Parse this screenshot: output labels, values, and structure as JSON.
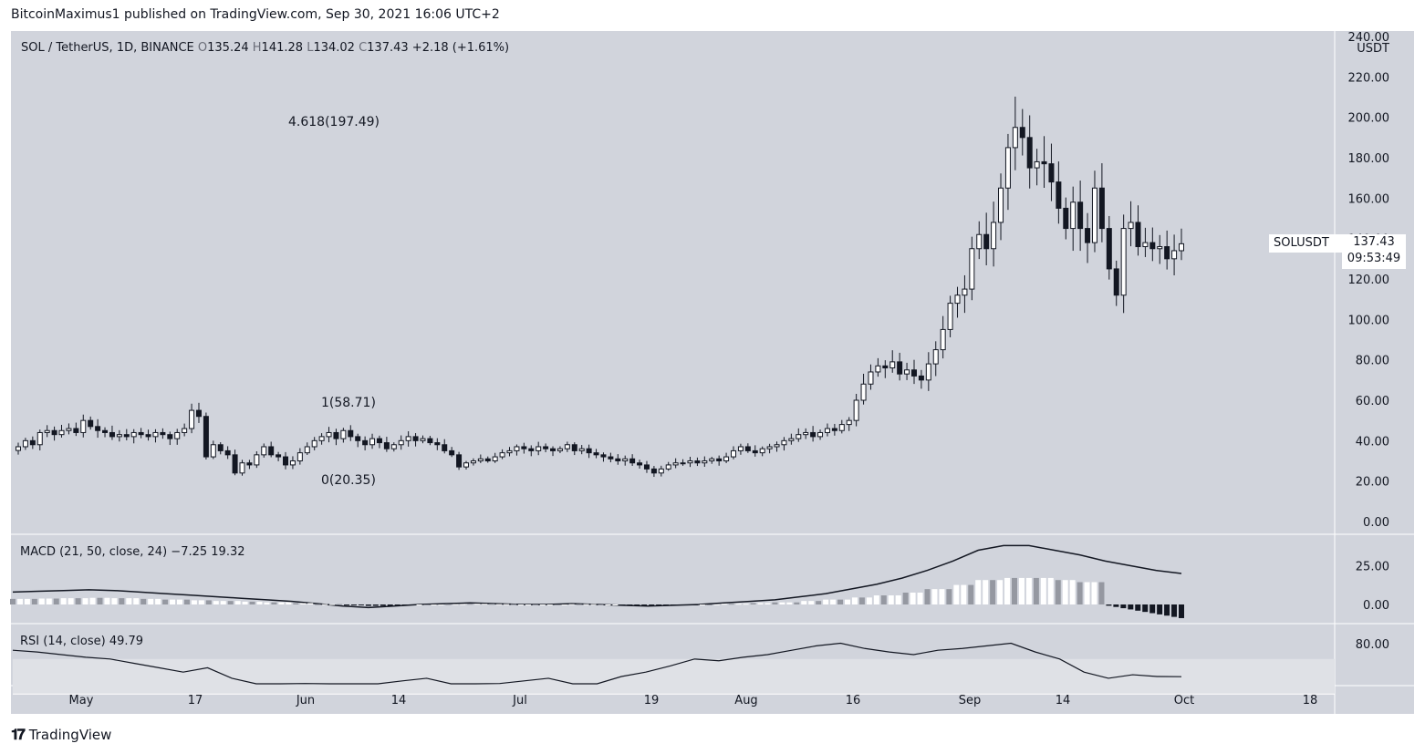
{
  "header": {
    "publisher_line": "BitcoinMaximus1 published on TradingView.com, Sep 30, 2021 16:06 UTC+2"
  },
  "legend": {
    "symbol": "SOL / TetherUS, 1D, BINANCE",
    "o_label": "O",
    "o": "135.24",
    "h_label": "H",
    "h": "141.28",
    "l_label": "L",
    "l": "134.02",
    "c_label": "C",
    "c": "137.43",
    "change": "+2.18 (+1.61%)"
  },
  "macd_legend": {
    "label": "MACD (21, 50, close, 24)",
    "v1": "−7.25",
    "v2": "19.32"
  },
  "rsi_legend": {
    "label": "RSI (14, close)",
    "v": "49.79"
  },
  "fib": {
    "top": "4.618(197.49)",
    "mid": "1(58.71)",
    "low": "0(20.35)"
  },
  "price_tag": {
    "symbol": "SOLUSDT",
    "price": "137.43",
    "countdown": "09:53:49"
  },
  "axis_unit": "USDT",
  "footer": {
    "brand": "TradingView"
  },
  "colors": {
    "bg": "#d1d4dc",
    "up": "#ffffff",
    "down": "#131722",
    "hist_light": "#9598a1"
  },
  "chart_data": [
    {
      "type": "candlestick",
      "title": "SOL / TetherUS, 1D, BINANCE",
      "ylabel": "USDT",
      "ylim": [
        0,
        240
      ],
      "y_ticks": [
        "240.00",
        "220.00",
        "200.00",
        "180.00",
        "160.00",
        "140.00",
        "120.00",
        "100.00",
        "80.00",
        "60.00",
        "40.00",
        "20.00",
        "0.00"
      ],
      "x_ticks": [
        "May",
        "17",
        "Jun",
        "14",
        "Jul",
        "19",
        "Aug",
        "16",
        "Sep",
        "14",
        "Oct",
        "18"
      ],
      "close_series": [
        37,
        40,
        38,
        44,
        45,
        43,
        45,
        46,
        44,
        50,
        47,
        45,
        44,
        42,
        43,
        42,
        44,
        43,
        42,
        44,
        43,
        41,
        44,
        46,
        55,
        52,
        32,
        38,
        35,
        33,
        24,
        29,
        28,
        33,
        37,
        33,
        32,
        28,
        30,
        34,
        37,
        40,
        42,
        44,
        41,
        45,
        42,
        40,
        38,
        41,
        39,
        36,
        38,
        40,
        42,
        40,
        41,
        39,
        38,
        35,
        33,
        27,
        29,
        30,
        31,
        30,
        32,
        34,
        35,
        37,
        36,
        35,
        37,
        36,
        35,
        36,
        38,
        35,
        36,
        34,
        33,
        32,
        31,
        30,
        31,
        29,
        28,
        26,
        24,
        26,
        28,
        29,
        29,
        30,
        29,
        30,
        31,
        30,
        32,
        35,
        37,
        35,
        34,
        36,
        37,
        38,
        40,
        41,
        43,
        44,
        42,
        44,
        46,
        45,
        48,
        50,
        60,
        68,
        74,
        77,
        76,
        79,
        73,
        75,
        72,
        70,
        78,
        85,
        95,
        108,
        112,
        115,
        135,
        142,
        135,
        148,
        165,
        185,
        195,
        190,
        175,
        178,
        177,
        168,
        155,
        145,
        158,
        145,
        138,
        165,
        145,
        125,
        112,
        145,
        148,
        136,
        138,
        135,
        136,
        130,
        134,
        137.43
      ],
      "macd_line_approx": [
        8,
        8.5,
        9,
        9.5,
        9,
        8,
        7,
        6,
        5,
        4,
        3,
        2,
        0.5,
        -1,
        -2,
        -1,
        0,
        0.5,
        1,
        0.5,
        0,
        0,
        0.5,
        0,
        -0.5,
        -1,
        -0.5,
        0,
        1,
        2,
        3,
        5,
        7,
        10,
        13,
        17,
        22,
        28,
        35,
        38,
        38,
        35,
        32,
        28,
        25,
        22,
        20
      ],
      "rsi_approx": [
        80,
        78,
        75,
        72,
        70,
        65,
        60,
        55,
        60,
        48,
        35,
        38,
        42,
        35,
        40,
        38,
        45,
        48,
        40,
        35,
        42,
        45,
        48,
        40,
        38,
        50,
        55,
        62,
        70,
        68,
        72,
        75,
        80,
        85,
        88,
        82,
        78,
        75,
        80,
        82,
        85,
        88,
        78,
        70,
        55,
        48,
        52,
        50,
        49.79
      ],
      "rsi_ylim": [
        0,
        100
      ],
      "rsi_ticks": [
        "80.00"
      ]
    }
  ]
}
